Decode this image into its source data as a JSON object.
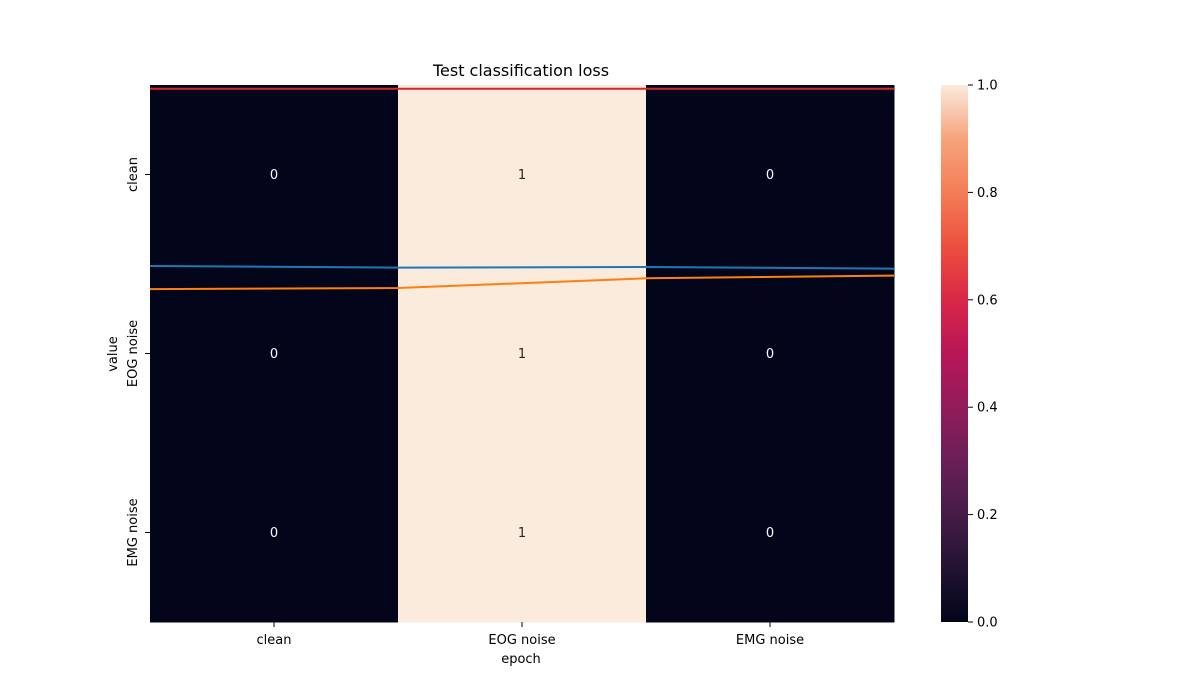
{
  "chart_data": {
    "type": "heatmap",
    "title": "Test classification loss",
    "xlabel": "epoch",
    "ylabel": "value",
    "x_categories": [
      "clean",
      "EOG noise",
      "EMG noise"
    ],
    "y_categories": [
      "clean",
      "EOG noise",
      "EMG noise"
    ],
    "values": [
      [
        0,
        1,
        0
      ],
      [
        0,
        1,
        0
      ],
      [
        0,
        1,
        0
      ]
    ],
    "colorbar": {
      "range": [
        0,
        1
      ],
      "ticks": [
        "0.0",
        "0.2",
        "0.4",
        "0.6",
        "0.8",
        "1.0"
      ]
    },
    "overlay_lines": [
      {
        "color": "#d62728",
        "values": [
          0.993,
          0.993,
          0.993
        ]
      },
      {
        "color": "#1f77b4",
        "values": [
          0.663,
          0.66,
          0.661,
          0.658
        ]
      },
      {
        "color": "#ff7f0e",
        "values": [
          0.62,
          0.622,
          0.64,
          0.645
        ]
      }
    ],
    "colors": {
      "low": "#03051a",
      "high": "#faebdd",
      "text_on_dark": "#ffffff",
      "text_on_light": "#262626"
    }
  }
}
